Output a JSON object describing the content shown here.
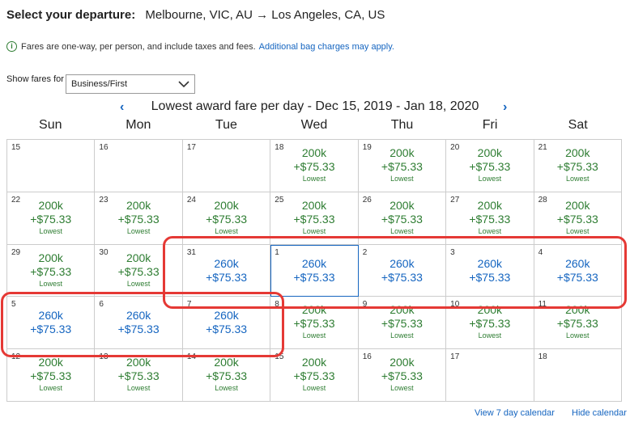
{
  "header": {
    "label": "Select your departure:",
    "route": "Melbourne, VIC, AU → Los Angeles, CA, US"
  },
  "notice": {
    "text": "Fares are one-way, per person, and include taxes and fees.",
    "link": "Additional bag charges may apply."
  },
  "fares": {
    "label": "Show fares for",
    "selected": "Business/First"
  },
  "calendar_title": "Lowest award fare per day - Dec 15, 2019 - Jan 18, 2020",
  "days": [
    "Sun",
    "Mon",
    "Tue",
    "Wed",
    "Thu",
    "Fri",
    "Sat"
  ],
  "cells": [
    {
      "day": "15",
      "miles": "",
      "tax": "",
      "note": "",
      "tone": ""
    },
    {
      "day": "16",
      "miles": "",
      "tax": "",
      "note": "",
      "tone": ""
    },
    {
      "day": "17",
      "miles": "",
      "tax": "",
      "note": "",
      "tone": ""
    },
    {
      "day": "18",
      "miles": "200k",
      "tax": "+$75.33",
      "note": "Lowest",
      "tone": "green"
    },
    {
      "day": "19",
      "miles": "200k",
      "tax": "+$75.33",
      "note": "Lowest",
      "tone": "green"
    },
    {
      "day": "20",
      "miles": "200k",
      "tax": "+$75.33",
      "note": "Lowest",
      "tone": "green"
    },
    {
      "day": "21",
      "miles": "200k",
      "tax": "+$75.33",
      "note": "Lowest",
      "tone": "green"
    },
    {
      "day": "22",
      "miles": "200k",
      "tax": "+$75.33",
      "note": "Lowest",
      "tone": "green"
    },
    {
      "day": "23",
      "miles": "200k",
      "tax": "+$75.33",
      "note": "Lowest",
      "tone": "green"
    },
    {
      "day": "24",
      "miles": "200k",
      "tax": "+$75.33",
      "note": "Lowest",
      "tone": "green"
    },
    {
      "day": "25",
      "miles": "200k",
      "tax": "+$75.33",
      "note": "Lowest",
      "tone": "green"
    },
    {
      "day": "26",
      "miles": "200k",
      "tax": "+$75.33",
      "note": "Lowest",
      "tone": "green"
    },
    {
      "day": "27",
      "miles": "200k",
      "tax": "+$75.33",
      "note": "Lowest",
      "tone": "green"
    },
    {
      "day": "28",
      "miles": "200k",
      "tax": "+$75.33",
      "note": "Lowest",
      "tone": "green"
    },
    {
      "day": "29",
      "miles": "200k",
      "tax": "+$75.33",
      "note": "Lowest",
      "tone": "green"
    },
    {
      "day": "30",
      "miles": "200k",
      "tax": "+$75.33",
      "note": "Lowest",
      "tone": "green"
    },
    {
      "day": "31",
      "miles": "260k",
      "tax": "+$75.33",
      "note": "",
      "tone": "blue"
    },
    {
      "day": "1",
      "miles": "260k",
      "tax": "+$75.33",
      "note": "",
      "tone": "blue",
      "selected": true
    },
    {
      "day": "2",
      "miles": "260k",
      "tax": "+$75.33",
      "note": "",
      "tone": "blue"
    },
    {
      "day": "3",
      "miles": "260k",
      "tax": "+$75.33",
      "note": "",
      "tone": "blue"
    },
    {
      "day": "4",
      "miles": "260k",
      "tax": "+$75.33",
      "note": "",
      "tone": "blue"
    },
    {
      "day": "5",
      "miles": "260k",
      "tax": "+$75.33",
      "note": "",
      "tone": "blue"
    },
    {
      "day": "6",
      "miles": "260k",
      "tax": "+$75.33",
      "note": "",
      "tone": "blue"
    },
    {
      "day": "7",
      "miles": "260k",
      "tax": "+$75.33",
      "note": "",
      "tone": "blue"
    },
    {
      "day": "8",
      "miles": "200k",
      "tax": "+$75.33",
      "note": "Lowest",
      "tone": "green"
    },
    {
      "day": "9",
      "miles": "200k",
      "tax": "+$75.33",
      "note": "Lowest",
      "tone": "green"
    },
    {
      "day": "10",
      "miles": "200k",
      "tax": "+$75.33",
      "note": "Lowest",
      "tone": "green"
    },
    {
      "day": "11",
      "miles": "200k",
      "tax": "+$75.33",
      "note": "Lowest",
      "tone": "green"
    },
    {
      "day": "12",
      "miles": "200k",
      "tax": "+$75.33",
      "note": "Lowest",
      "tone": "green"
    },
    {
      "day": "13",
      "miles": "200k",
      "tax": "+$75.33",
      "note": "Lowest",
      "tone": "green"
    },
    {
      "day": "14",
      "miles": "200k",
      "tax": "+$75.33",
      "note": "Lowest",
      "tone": "green"
    },
    {
      "day": "15",
      "miles": "200k",
      "tax": "+$75.33",
      "note": "Lowest",
      "tone": "green"
    },
    {
      "day": "16",
      "miles": "200k",
      "tax": "+$75.33",
      "note": "Lowest",
      "tone": "green"
    },
    {
      "day": "17",
      "miles": "",
      "tax": "",
      "note": "",
      "tone": ""
    },
    {
      "day": "18",
      "miles": "",
      "tax": "",
      "note": "",
      "tone": ""
    }
  ],
  "footer": {
    "seven_day": "View 7 day calendar",
    "hide": "Hide calendar"
  },
  "colors": {
    "available": "#2e7d32",
    "higher": "#1565c0",
    "highlight": "#e53935"
  }
}
